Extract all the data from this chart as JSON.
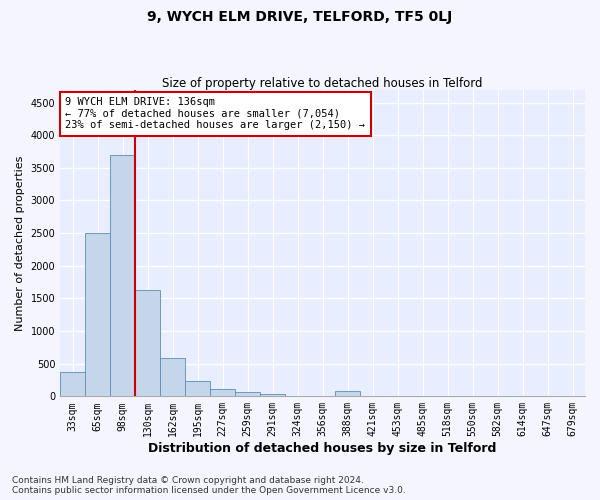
{
  "title": "9, WYCH ELM DRIVE, TELFORD, TF5 0LJ",
  "subtitle": "Size of property relative to detached houses in Telford",
  "xlabel": "Distribution of detached houses by size in Telford",
  "ylabel": "Number of detached properties",
  "bar_labels": [
    "33sqm",
    "65sqm",
    "98sqm",
    "130sqm",
    "162sqm",
    "195sqm",
    "227sqm",
    "259sqm",
    "291sqm",
    "324sqm",
    "356sqm",
    "388sqm",
    "421sqm",
    "453sqm",
    "485sqm",
    "518sqm",
    "550sqm",
    "582sqm",
    "614sqm",
    "647sqm",
    "679sqm"
  ],
  "bar_values": [
    370,
    2500,
    3700,
    1630,
    590,
    230,
    105,
    60,
    40,
    0,
    0,
    75,
    0,
    0,
    0,
    0,
    0,
    0,
    0,
    0,
    0
  ],
  "bar_color": "#c5d6ea",
  "bar_edge_color": "#5b8db8",
  "ylim": [
    0,
    4700
  ],
  "yticks": [
    0,
    500,
    1000,
    1500,
    2000,
    2500,
    3000,
    3500,
    4000,
    4500
  ],
  "property_line_index": 3,
  "property_line_color": "#cc0000",
  "annotation_text": "9 WYCH ELM DRIVE: 136sqm\n← 77% of detached houses are smaller (7,054)\n23% of semi-detached houses are larger (2,150) →",
  "annotation_box_color": "#cc0000",
  "footer_text": "Contains HM Land Registry data © Crown copyright and database right 2024.\nContains public sector information licensed under the Open Government Licence v3.0.",
  "fig_bg_color": "#f5f5ff",
  "plot_bg_color": "#e8eeff",
  "grid_color": "#ffffff",
  "title_fontsize": 10,
  "subtitle_fontsize": 8.5,
  "xlabel_fontsize": 9,
  "ylabel_fontsize": 8,
  "tick_fontsize": 7,
  "annotation_fontsize": 7.5,
  "footer_fontsize": 6.5
}
